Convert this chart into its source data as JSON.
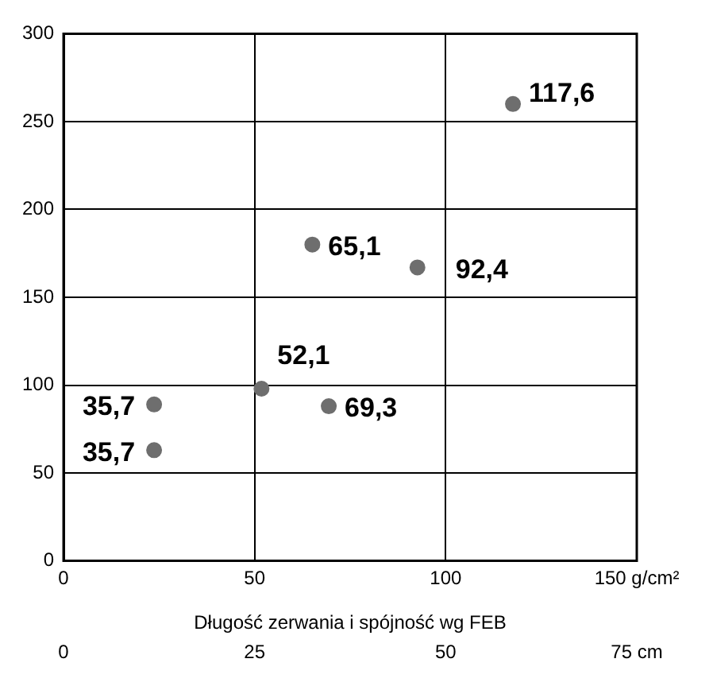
{
  "chart_data": {
    "type": "scatter",
    "xlabel": "Długość zerwania i spójność wg FEB",
    "x": [
      117.6,
      65.1,
      92.6,
      51.8,
      69.4,
      23.7,
      23.7
    ],
    "values": [
      260,
      180,
      167,
      98,
      88,
      89,
      63
    ],
    "annotations": [
      {
        "text": "117,6",
        "x": 117.6,
        "y": 260
      },
      {
        "text": "65,1",
        "x": 65.1,
        "y": 180
      },
      {
        "text": "92,4",
        "x": 92.6,
        "y": 167
      },
      {
        "text": "52,1",
        "x": 51.8,
        "y": 98
      },
      {
        "text": "69,3",
        "x": 69.4,
        "y": 88
      },
      {
        "text": "35,7",
        "x": 23.7,
        "y": 89
      },
      {
        "text": "35,7",
        "x": 23.7,
        "y": 63
      }
    ],
    "color": "#6e6e6e",
    "marker": "circle",
    "grid": true,
    "xlim": [
      0,
      150
    ],
    "xticks": [
      0,
      50,
      100,
      {
        "value": 150,
        "label": "150 g/cm²"
      }
    ],
    "x2lim": [
      0,
      75
    ],
    "x2ticks": [
      0,
      25,
      50,
      {
        "value": 75,
        "label": "75 cm"
      }
    ],
    "ylim": [
      0,
      300
    ],
    "yticks": [
      0,
      50,
      100,
      150,
      200,
      250,
      300
    ]
  }
}
